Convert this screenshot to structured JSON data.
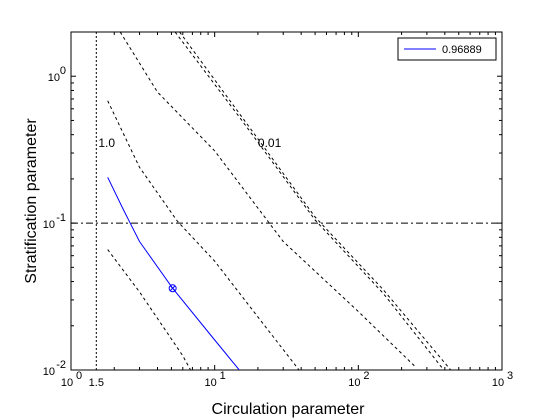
{
  "chart_data": {
    "type": "line",
    "xscale": "log",
    "yscale": "log",
    "xlim": [
      1,
      1000
    ],
    "ylim": [
      0.01,
      2
    ],
    "xlabel": "Circulation parameter",
    "ylabel": "Stratification parameter",
    "x_ticks": [
      {
        "value": 1,
        "base": "10",
        "exp": "0"
      },
      {
        "value": 10,
        "base": "10",
        "exp": "1"
      },
      {
        "value": 100,
        "base": "10",
        "exp": "2"
      },
      {
        "value": 1000,
        "base": "10",
        "exp": "3"
      }
    ],
    "y_ticks": [
      {
        "value": 0.01,
        "base": "10",
        "exp": "-2"
      },
      {
        "value": 0.1,
        "base": "10",
        "exp": "-1"
      },
      {
        "value": 1,
        "base": "10",
        "exp": "0"
      }
    ],
    "extra_x_tick": {
      "value": 1.5,
      "label": "1.5"
    },
    "legend": {
      "placement": "top-right",
      "entries": [
        {
          "label": "0.96889",
          "color": "#0000ff"
        }
      ]
    },
    "series": [
      {
        "name": "0.96889",
        "color": "#0000ff",
        "style": "solid",
        "points": [
          [
            1.8,
            0.205
          ],
          [
            2.3,
            0.125
          ],
          [
            3.0,
            0.075
          ],
          [
            5.1,
            0.036
          ],
          [
            10,
            0.016
          ],
          [
            17,
            0.0085
          ]
        ]
      },
      {
        "color": "#000000",
        "style": "dashed",
        "points": [
          [
            1.8,
            0.066
          ],
          [
            3.0,
            0.034
          ],
          [
            6.0,
            0.0125
          ],
          [
            7.0,
            0.0095
          ]
        ]
      },
      {
        "color": "#000000",
        "style": "dashed",
        "points": [
          [
            1.8,
            0.68
          ],
          [
            3.0,
            0.24
          ],
          [
            5.5,
            0.103
          ],
          [
            10,
            0.055
          ],
          [
            20,
            0.023
          ],
          [
            42,
            0.009
          ]
        ]
      },
      {
        "color": "#000000",
        "style": "dashed",
        "points": [
          [
            2.2,
            2.0
          ],
          [
            4.0,
            0.78
          ],
          [
            10,
            0.31
          ],
          [
            30,
            0.075
          ],
          [
            100,
            0.025
          ],
          [
            250,
            0.0105
          ]
        ]
      },
      {
        "color": "#000000",
        "style": "dashed",
        "points": [
          [
            5.3,
            2.0
          ],
          [
            15,
            0.52
          ],
          [
            50,
            0.105
          ],
          [
            150,
            0.033
          ],
          [
            410,
            0.0095
          ]
        ]
      },
      {
        "color": "#000000",
        "style": "dashed",
        "points": [
          [
            5.7,
            2.0
          ],
          [
            15,
            0.55
          ],
          [
            50,
            0.11
          ],
          [
            150,
            0.035
          ],
          [
            460,
            0.0095
          ]
        ]
      }
    ],
    "reference_lines": [
      {
        "orientation": "vertical",
        "value": 1.5,
        "style": "dotted",
        "color": "#000000"
      },
      {
        "orientation": "horizontal",
        "value": 0.1,
        "style": "dashdot",
        "color": "#000000"
      }
    ],
    "marker": {
      "x": 5.1,
      "y": 0.036,
      "symbol": "circle-x",
      "color": "#0000ff"
    },
    "annotations": [
      {
        "text": "1.0",
        "x": 1.55,
        "y": 0.33
      },
      {
        "text": "0.01",
        "x": 20,
        "y": 0.33
      }
    ]
  }
}
